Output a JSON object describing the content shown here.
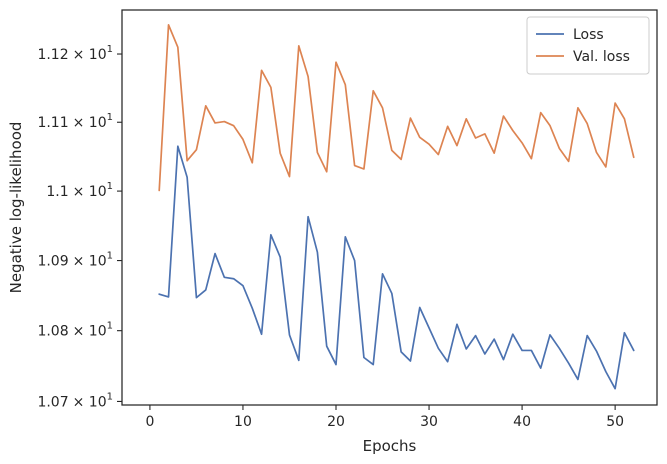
{
  "chart_data": {
    "type": "line",
    "xlabel": "Epochs",
    "ylabel": "Negative log-likelihood",
    "xlim": [
      -3,
      54.5
    ],
    "ylim": [
      10.695,
      11.265
    ],
    "xticks": [
      0,
      10,
      20,
      30,
      40,
      50
    ],
    "yticks": [
      {
        "value": 10.7,
        "mantissa": "1.07",
        "base": "× 10",
        "exp": "1"
      },
      {
        "value": 10.8,
        "mantissa": "1.08",
        "base": "× 10",
        "exp": "1"
      },
      {
        "value": 10.9,
        "mantissa": "1.09",
        "base": "× 10",
        "exp": "1"
      },
      {
        "value": 11.0,
        "mantissa": "1.1",
        "base": "× 10",
        "exp": "1"
      },
      {
        "value": 11.1,
        "mantissa": "1.11",
        "base": "× 10",
        "exp": "1"
      },
      {
        "value": 11.2,
        "mantissa": "1.12",
        "base": "× 10",
        "exp": "1"
      }
    ],
    "yscale": "log",
    "grid": false,
    "legend_position": "top-right",
    "x": [
      1,
      2,
      3,
      4,
      5,
      6,
      7,
      8,
      9,
      10,
      11,
      12,
      13,
      14,
      15,
      16,
      17,
      18,
      19,
      20,
      21,
      22,
      23,
      24,
      25,
      26,
      27,
      28,
      29,
      30,
      31,
      32,
      33,
      34,
      35,
      36,
      37,
      38,
      39,
      40,
      41,
      42,
      43,
      44,
      45,
      46,
      47,
      48,
      49,
      50,
      51,
      52
    ],
    "series": [
      {
        "name": "Loss",
        "color": "#4c72b0",
        "values": [
          10.852,
          10.848,
          11.065,
          11.02,
          10.847,
          10.858,
          10.91,
          10.876,
          10.874,
          10.864,
          10.832,
          10.795,
          10.937,
          10.905,
          10.794,
          10.758,
          10.963,
          10.912,
          10.778,
          10.752,
          10.934,
          10.9,
          10.762,
          10.752,
          10.881,
          10.853,
          10.77,
          10.757,
          10.833,
          10.804,
          10.775,
          10.756,
          10.809,
          10.774,
          10.793,
          10.767,
          10.788,
          10.759,
          10.795,
          10.772,
          10.772,
          10.747,
          10.794,
          10.775,
          10.754,
          10.731,
          10.793,
          10.771,
          10.742,
          10.718,
          10.797,
          10.772
        ]
      },
      {
        "name": "Val. loss",
        "color": "#dd8452",
        "values": [
          11.001,
          11.243,
          11.21,
          11.044,
          11.06,
          11.124,
          11.099,
          11.101,
          11.095,
          11.075,
          11.041,
          11.176,
          11.151,
          11.055,
          11.021,
          11.212,
          11.167,
          11.056,
          11.028,
          11.188,
          11.155,
          11.037,
          11.032,
          11.146,
          11.121,
          11.059,
          11.046,
          11.106,
          11.078,
          11.068,
          11.053,
          11.094,
          11.066,
          11.105,
          11.077,
          11.083,
          11.055,
          11.109,
          11.088,
          11.07,
          11.047,
          11.114,
          11.095,
          11.062,
          11.043,
          11.121,
          11.098,
          11.056,
          11.035,
          11.128,
          11.105,
          11.049
        ]
      }
    ]
  }
}
